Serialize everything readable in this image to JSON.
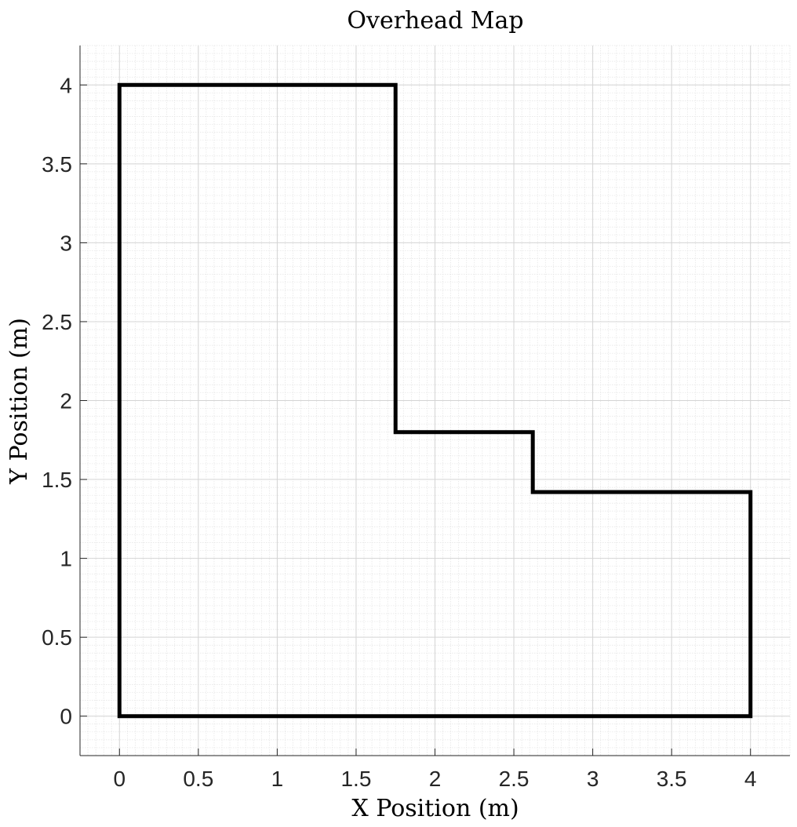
{
  "chart_data": {
    "type": "line",
    "title": "Overhead Map",
    "xlabel": "X Position (m)",
    "ylabel": "Y Position (m)",
    "xlim": [
      -0.25,
      4.25
    ],
    "ylim": [
      -0.25,
      4.25
    ],
    "x_ticks": [
      0,
      0.5,
      1,
      1.5,
      2,
      2.5,
      3,
      3.5,
      4
    ],
    "x_tick_labels": [
      "0",
      "0.5",
      "1",
      "1.5",
      "2",
      "2.5",
      "3",
      "3.5",
      "4"
    ],
    "y_ticks": [
      0,
      0.5,
      1,
      1.5,
      2,
      2.5,
      3,
      3.5,
      4
    ],
    "y_tick_labels": [
      "0",
      "0.5",
      "1",
      "1.5",
      "2",
      "2.5",
      "3",
      "3.5",
      "4"
    ],
    "grid": true,
    "minor_grid": true,
    "series": [
      {
        "color": "#000000",
        "x": [
          0,
          1.75,
          1.75,
          2.62,
          2.62,
          4,
          4,
          0,
          0
        ],
        "y": [
          4,
          4,
          1.8,
          1.8,
          1.42,
          1.42,
          0,
          0,
          4
        ]
      }
    ]
  }
}
